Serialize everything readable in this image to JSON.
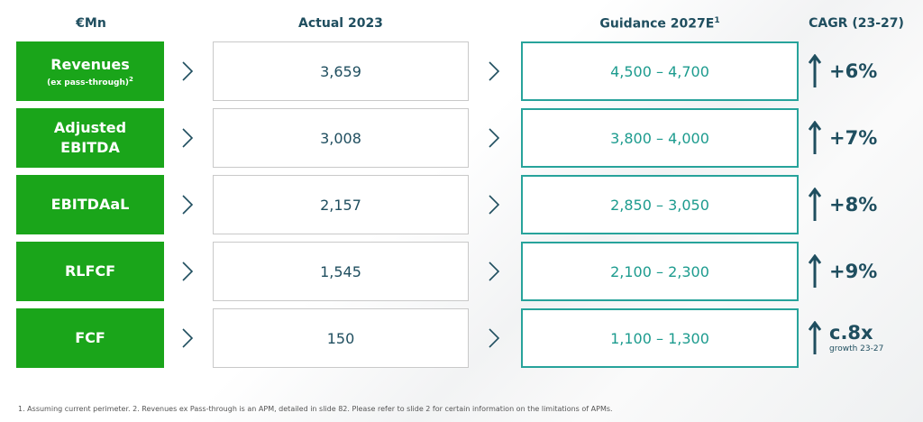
{
  "headers": {
    "metric": "€Mn",
    "actual": "Actual 2023",
    "guidance": "Guidance 2027E",
    "guidance_sup": "1",
    "cagr": "CAGR (23-27)"
  },
  "rows": [
    {
      "label": "Revenues",
      "sublabel": "(ex pass-through)",
      "sublabel_sup": "2",
      "actual": "3,659",
      "guidance": "4,500 – 4,700",
      "cagr": "+6%",
      "cagr_note": ""
    },
    {
      "label": "Adjusted EBITDA",
      "sublabel": "",
      "sublabel_sup": "",
      "actual": "3,008",
      "guidance": "3,800 – 4,000",
      "cagr": "+7%",
      "cagr_note": ""
    },
    {
      "label": "EBITDAaL",
      "sublabel": "",
      "sublabel_sup": "",
      "actual": "2,157",
      "guidance": "2,850 – 3,050",
      "cagr": "+8%",
      "cagr_note": ""
    },
    {
      "label": "RLFCF",
      "sublabel": "",
      "sublabel_sup": "",
      "actual": "1,545",
      "guidance": "2,100 – 2,300",
      "cagr": "+9%",
      "cagr_note": ""
    },
    {
      "label": "FCF",
      "sublabel": "",
      "sublabel_sup": "",
      "actual": "150",
      "guidance": "1,100 – 1,300",
      "cagr": "c.8x",
      "cagr_note": "growth 23-27"
    }
  ],
  "footnote": "1. Assuming current perimeter. 2. Revenues ex Pass-through is an APM, detailed in slide 82. Please refer to slide 2 for certain information on the limitations of APMs.",
  "colors": {
    "label_bg": "#1aa51a",
    "guidance_border": "#27a39b",
    "guidance_text": "#1c9b8e",
    "dark_text": "#1f4e5f"
  },
  "icons": {
    "chevron": "chevron-right-icon",
    "growth": "arrow-up-icon"
  }
}
